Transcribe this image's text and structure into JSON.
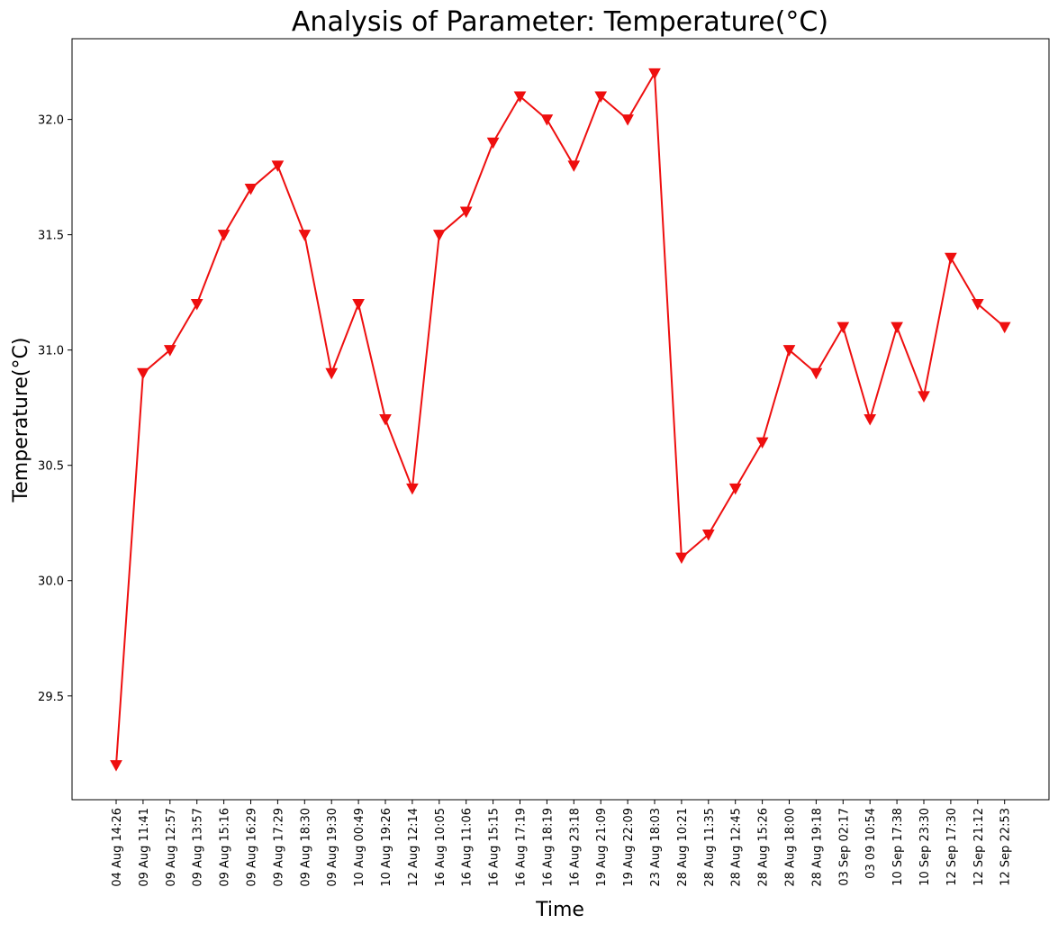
{
  "chart_data": {
    "type": "line",
    "title": "Analysis of Parameter: Temperature(°C)",
    "xlabel": "Time",
    "ylabel": "Temperature(°C)",
    "categories": [
      "04 Aug 14:26",
      "09 Aug 11:41",
      "09 Aug 12:57",
      "09 Aug 13:57",
      "09 Aug 15:16",
      "09 Aug 16:29",
      "09 Aug 17:29",
      "09 Aug 18:30",
      "09 Aug 19:30",
      "10 Aug 00:49",
      "10 Aug 19:26",
      "12 Aug 12:14",
      "16 Aug 10:05",
      "16 Aug 11:06",
      "16 Aug 15:15",
      "16 Aug 17:19",
      "16 Aug 18:19",
      "16 Aug 23:18",
      "19 Aug 21:09",
      "19 Aug 22:09",
      "23 Aug 18:03",
      "28 Aug 10:21",
      "28 Aug 11:35",
      "28 Aug 12:45",
      "28 Aug 15:26",
      "28 Aug 18:00",
      "28 Aug 19:18",
      "03 Sep 02:17",
      "03 09 10:54",
      "10 Sep 17:38",
      "10 Sep 23:30",
      "12 Sep 17:30",
      "12 Sep 21:12",
      "12 Sep 22:53"
    ],
    "series": [
      {
        "values": [
          29.2,
          30.9,
          31.0,
          31.2,
          31.5,
          31.7,
          31.8,
          31.5,
          30.9,
          31.2,
          30.7,
          30.4,
          31.5,
          31.6,
          31.9,
          32.1,
          32.0,
          31.8,
          32.1,
          32.0,
          32.2,
          30.1,
          30.2,
          30.4,
          30.6,
          31.0,
          30.9,
          31.1,
          30.7,
          31.1,
          30.8,
          31.4,
          31.2,
          31.1
        ],
        "color": "#ee0f0f",
        "marker": "triangle-down"
      }
    ],
    "yticks": [
      "29.5",
      "30.0",
      "30.5",
      "31.0",
      "31.5",
      "32.0"
    ],
    "ylim": [
      29.05,
      32.35
    ],
    "grid": false,
    "legend": "none"
  }
}
